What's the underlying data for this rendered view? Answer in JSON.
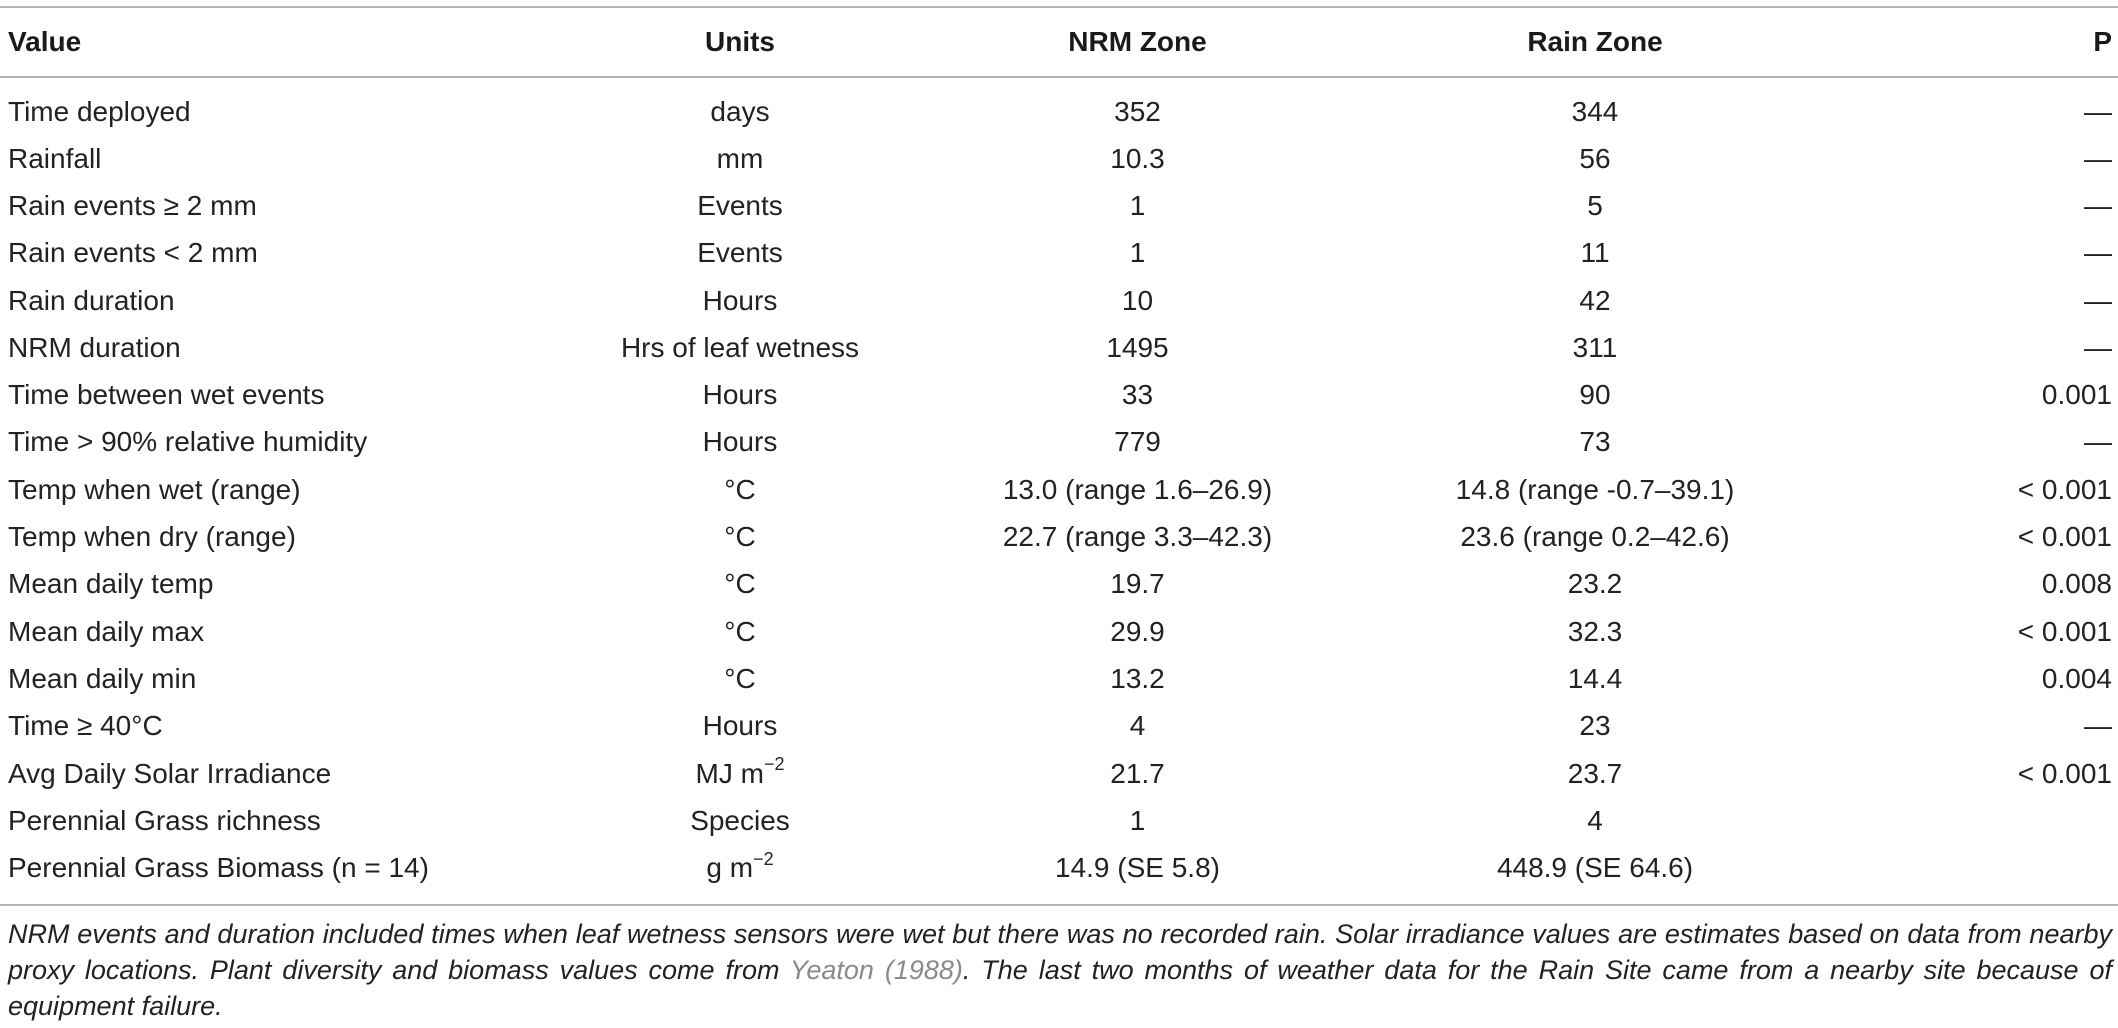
{
  "table": {
    "headers": [
      "Value",
      "Units",
      "NRM Zone",
      "Rain Zone",
      "P"
    ],
    "rows": [
      {
        "value": "Time deployed",
        "units": "days",
        "unit_sup": "",
        "nrm": "352",
        "rain": "344",
        "p": "—"
      },
      {
        "value": "Rainfall",
        "units": "mm",
        "unit_sup": "",
        "nrm": "10.3",
        "rain": "56",
        "p": "—"
      },
      {
        "value": "Rain events ≥ 2 mm",
        "units": "Events",
        "unit_sup": "",
        "nrm": "1",
        "rain": "5",
        "p": "—"
      },
      {
        "value": "Rain events < 2 mm",
        "units": "Events",
        "unit_sup": "",
        "nrm": "1",
        "rain": "11",
        "p": "—"
      },
      {
        "value": "Rain duration",
        "units": "Hours",
        "unit_sup": "",
        "nrm": "10",
        "rain": "42",
        "p": "—"
      },
      {
        "value": "NRM duration",
        "units": "Hrs of leaf wetness",
        "unit_sup": "",
        "nrm": "1495",
        "rain": "311",
        "p": "—"
      },
      {
        "value": "Time between wet events",
        "units": "Hours",
        "unit_sup": "",
        "nrm": "33",
        "rain": "90",
        "p": "0.001"
      },
      {
        "value": "Time > 90% relative humidity",
        "units": "Hours",
        "unit_sup": "",
        "nrm": "779",
        "rain": "73",
        "p": "—"
      },
      {
        "value": "Temp when wet (range)",
        "units": "°C",
        "unit_sup": "",
        "nrm": "13.0 (range 1.6–26.9)",
        "rain": "14.8 (range -0.7–39.1)",
        "p": "< 0.001"
      },
      {
        "value": "Temp when dry (range)",
        "units": "°C",
        "unit_sup": "",
        "nrm": "22.7 (range 3.3–42.3)",
        "rain": "23.6 (range 0.2–42.6)",
        "p": "< 0.001"
      },
      {
        "value": "Mean daily temp",
        "units": "°C",
        "unit_sup": "",
        "nrm": "19.7",
        "rain": "23.2",
        "p": "0.008"
      },
      {
        "value": "Mean daily max",
        "units": "°C",
        "unit_sup": "",
        "nrm": "29.9",
        "rain": "32.3",
        "p": "< 0.001"
      },
      {
        "value": "Mean daily min",
        "units": "°C",
        "unit_sup": "",
        "nrm": "13.2",
        "rain": "14.4",
        "p": "0.004"
      },
      {
        "value": "Time ≥ 40°C",
        "units": "Hours",
        "unit_sup": "",
        "nrm": "4",
        "rain": "23",
        "p": "—"
      },
      {
        "value": "Avg Daily Solar Irradiance",
        "units": "MJ m",
        "unit_sup": "−2",
        "nrm": "21.7",
        "rain": "23.7",
        "p": "< 0.001"
      },
      {
        "value": "Perennial Grass richness",
        "units": "Species",
        "unit_sup": "",
        "nrm": "1",
        "rain": "4",
        "p": ""
      },
      {
        "value": "Perennial Grass Biomass (n = 14)",
        "units": "g m",
        "unit_sup": "−2",
        "nrm": "14.9 (SE 5.8)",
        "rain": "448.9 (SE 64.6)",
        "p": ""
      }
    ]
  },
  "footnote": {
    "text_before": "NRM events and duration included times when leaf wetness sensors were wet but there was no recorded rain. Solar irradiance values are estimates based on data from nearby proxy locations. Plant diversity and biomass values come from ",
    "citation": "Yeaton (1988)",
    "text_after": ". The last two months of weather data for the Rain Site came from a nearby site because of equipment failure."
  },
  "colors": {
    "rule": "#b5b5b5",
    "text": "#222222",
    "citation": "#8a8a8a"
  }
}
